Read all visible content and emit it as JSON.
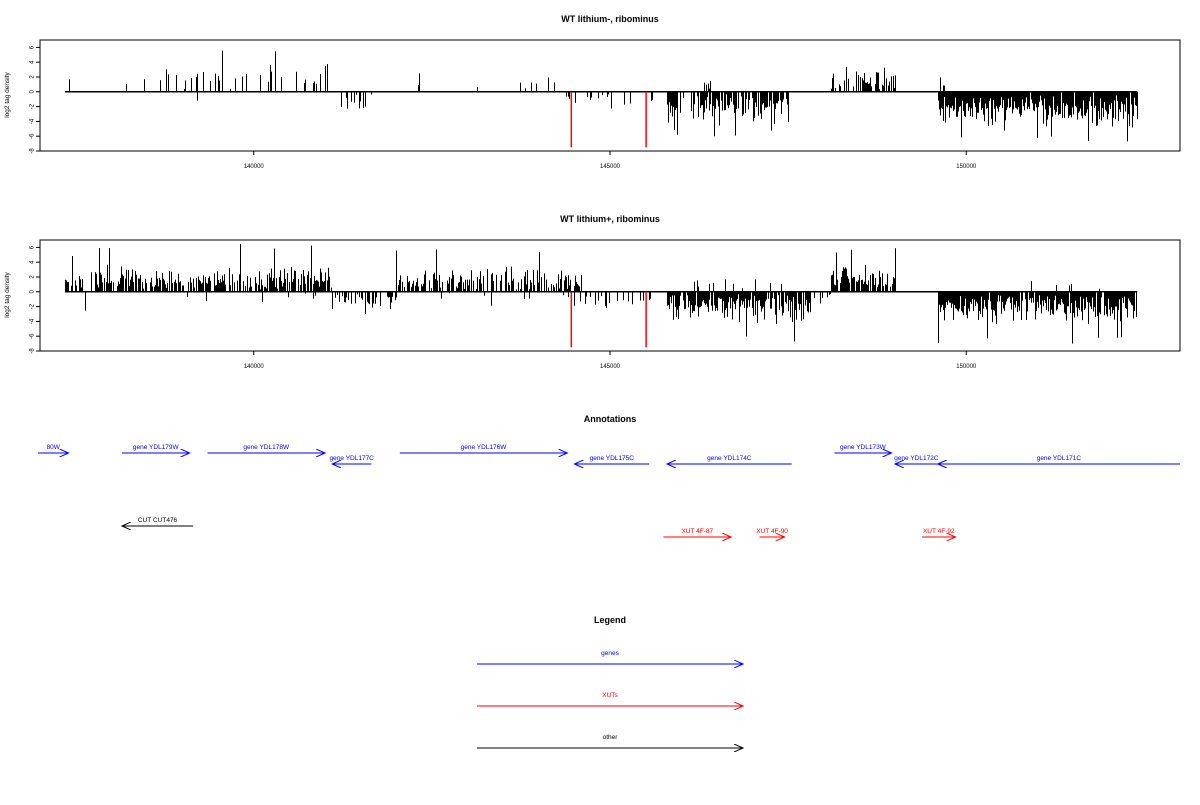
{
  "chart_data": [
    {
      "type": "bar",
      "title": "WT lithium-, ribominus",
      "ylabel": "log2 tag density",
      "xlabel": "",
      "xlim": [
        137000,
        153000
      ],
      "ylim": [
        -8,
        7
      ],
      "yticks": [
        -8,
        -6,
        -4,
        -2,
        0,
        2,
        4,
        6
      ],
      "xticks": [
        140000,
        145000,
        150000
      ],
      "xtick_labels": [
        "140000",
        "145000",
        "150000"
      ],
      "data_span": [
        137350,
        152400
      ],
      "seed": 7,
      "segments": [
        {
          "x0": 137350,
          "x1": 137600,
          "sign": 1,
          "density": 0.05,
          "amp": 2.2
        },
        {
          "x0": 137600,
          "x1": 137700,
          "sign": -1,
          "density": 0.08,
          "amp": 2.5
        },
        {
          "x0": 137800,
          "x1": 138400,
          "sign": 1,
          "density": 0.03,
          "amp": 1.2
        },
        {
          "x0": 138400,
          "x1": 141100,
          "sign": 1,
          "density": 0.16,
          "amp": 3.2,
          "max": 6
        },
        {
          "x0": 139000,
          "x1": 139200,
          "sign": -1,
          "density": 0.1,
          "amp": 1.5
        },
        {
          "x0": 141200,
          "x1": 141700,
          "sign": -1,
          "density": 0.35,
          "amp": 2.6
        },
        {
          "x0": 142300,
          "x1": 142350,
          "sign": 1,
          "density": 0.9,
          "amp": 2.5
        },
        {
          "x0": 142700,
          "x1": 143200,
          "sign": 1,
          "density": 0.04,
          "amp": 1.5
        },
        {
          "x0": 143600,
          "x1": 144300,
          "sign": 1,
          "density": 0.08,
          "amp": 2.0
        },
        {
          "x0": 144300,
          "x1": 145600,
          "sign": -1,
          "density": 0.12,
          "amp": 1.8
        },
        {
          "x0": 145800,
          "x1": 147500,
          "sign": -1,
          "density": 0.7,
          "amp": 3.9,
          "max": 6
        },
        {
          "x0": 146300,
          "x1": 146400,
          "sign": 1,
          "density": 0.3,
          "amp": 2.0
        },
        {
          "x0": 148100,
          "x1": 149000,
          "sign": 1,
          "density": 0.6,
          "amp": 2.8,
          "max": 5
        },
        {
          "x0": 148800,
          "x1": 149000,
          "sign": -1,
          "density": 0.1,
          "amp": 0.6
        },
        {
          "x0": 149600,
          "x1": 149700,
          "sign": 1,
          "density": 0.2,
          "amp": 2.5
        },
        {
          "x0": 149600,
          "x1": 152400,
          "sign": -1,
          "density": 0.95,
          "amp": 4.2,
          "max": 7
        }
      ],
      "marks": [
        {
          "x": 144450,
          "y": -7.5,
          "color": "#ff0000"
        },
        {
          "x": 145500,
          "y": -7.5,
          "color": "#ff0000"
        }
      ]
    },
    {
      "type": "bar",
      "title": "WT lithium+, ribominus",
      "ylabel": "log2 tag density",
      "xlabel": "",
      "xlim": [
        137000,
        153000
      ],
      "ylim": [
        -8,
        7
      ],
      "yticks": [
        -8,
        -6,
        -4,
        -2,
        0,
        2,
        4,
        6
      ],
      "xticks": [
        140000,
        145000,
        150000
      ],
      "xtick_labels": [
        "140000",
        "145000",
        "150000"
      ],
      "data_span": [
        137350,
        152400
      ],
      "seed": 13,
      "segments": [
        {
          "x0": 137350,
          "x1": 137600,
          "sign": 1,
          "density": 0.5,
          "amp": 2.5,
          "max": 5
        },
        {
          "x0": 137600,
          "x1": 137700,
          "sign": -1,
          "density": 0.12,
          "amp": 2.8
        },
        {
          "x0": 137700,
          "x1": 141100,
          "sign": 1,
          "density": 0.7,
          "amp": 3.0,
          "max": 6.5
        },
        {
          "x0": 138500,
          "x1": 141000,
          "sign": -1,
          "density": 0.05,
          "amp": 1.2
        },
        {
          "x0": 141100,
          "x1": 142000,
          "sign": -1,
          "density": 0.55,
          "amp": 2.8,
          "max": 4.8
        },
        {
          "x0": 142000,
          "x1": 144600,
          "sign": 1,
          "density": 0.6,
          "amp": 2.8,
          "max": 6
        },
        {
          "x0": 142500,
          "x1": 144500,
          "sign": -1,
          "density": 0.05,
          "amp": 1.5
        },
        {
          "x0": 144300,
          "x1": 145600,
          "sign": -1,
          "density": 0.3,
          "amp": 2.2
        },
        {
          "x0": 145800,
          "x1": 147800,
          "sign": -1,
          "density": 0.85,
          "amp": 3.6,
          "max": 7
        },
        {
          "x0": 146000,
          "x1": 147800,
          "sign": 1,
          "density": 0.06,
          "amp": 2.0
        },
        {
          "x0": 147800,
          "x1": 148100,
          "sign": -1,
          "density": 0.2,
          "amp": 1.5
        },
        {
          "x0": 148100,
          "x1": 149000,
          "sign": 1,
          "density": 0.75,
          "amp": 3.2,
          "max": 6.2
        },
        {
          "x0": 149600,
          "x1": 152400,
          "sign": -1,
          "density": 0.95,
          "amp": 3.7,
          "max": 7
        },
        {
          "x0": 149700,
          "x1": 152400,
          "sign": 1,
          "density": 0.04,
          "amp": 1.5
        }
      ],
      "marks": [
        {
          "x": 144450,
          "y": -7.5,
          "color": "#ff0000"
        },
        {
          "x": 145500,
          "y": -7.5,
          "color": "#ff0000"
        }
      ]
    }
  ],
  "annotations": {
    "title": "Annotations",
    "features": [
      {
        "label": "80W",
        "x0": 136900,
        "x1": 137400,
        "strand": "+",
        "row": 0,
        "color": "#0000ff"
      },
      {
        "label": "gene YDL179W",
        "x0": 138150,
        "x1": 139100,
        "strand": "+",
        "row": 0,
        "color": "#0000ff"
      },
      {
        "label": "gene YDL178W",
        "x0": 139350,
        "x1": 141000,
        "strand": "+",
        "row": 0,
        "color": "#0000ff"
      },
      {
        "label": "gene YDL177C",
        "x0": 141100,
        "x1": 141650,
        "strand": "-",
        "row": 1,
        "color": "#0000ff"
      },
      {
        "label": "gene YDL176W",
        "x0": 142050,
        "x1": 144400,
        "strand": "+",
        "row": 0,
        "color": "#0000ff"
      },
      {
        "label": "gene YDL175C",
        "x0": 144500,
        "x1": 145550,
        "strand": "-",
        "row": 1,
        "color": "#0000ff"
      },
      {
        "label": "gene YDL174C",
        "x0": 145800,
        "x1": 147550,
        "strand": "-",
        "row": 1,
        "color": "#0000ff"
      },
      {
        "label": "gene YDL173W",
        "x0": 148150,
        "x1": 148950,
        "strand": "+",
        "row": 0,
        "color": "#0000ff"
      },
      {
        "label": "gene YDL172C",
        "x0": 149000,
        "x1": 149600,
        "strand": "-",
        "row": 1,
        "color": "#0000ff"
      },
      {
        "label": "gene YDL171C",
        "x0": 149600,
        "x1": 153300,
        "strand": "-",
        "row": 1,
        "color": "#0000ff"
      },
      {
        "label": "CUT CUT476",
        "x0": 138150,
        "x1": 139150,
        "strand": "-",
        "row": 3,
        "color": "#000000"
      },
      {
        "label": "XUT 4F-87",
        "x0": 145750,
        "x1": 146700,
        "strand": "+",
        "row": 4,
        "color": "#ff0000"
      },
      {
        "label": "XUT 4F-90",
        "x0": 147100,
        "x1": 147450,
        "strand": "+",
        "row": 4,
        "color": "#ff0000"
      },
      {
        "label": "XUT 4F-92",
        "x0": 149380,
        "x1": 149850,
        "strand": "+",
        "row": 4,
        "color": "#ff0000"
      }
    ]
  },
  "legend": {
    "title": "Legend",
    "items": [
      {
        "label": "genes",
        "color": "#0000ff"
      },
      {
        "label": "XUTs",
        "color": "#ff0000"
      },
      {
        "label": "other",
        "color": "#000000"
      }
    ]
  }
}
